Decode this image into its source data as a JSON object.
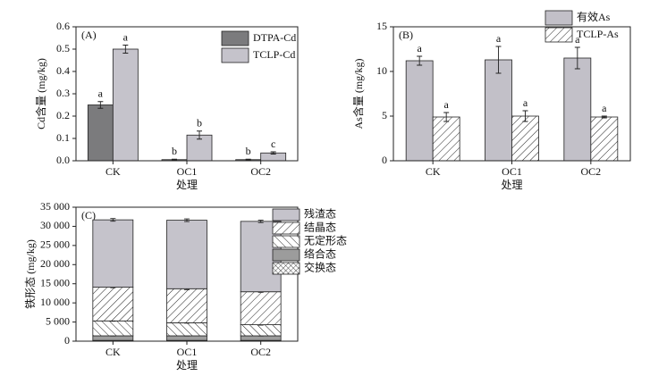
{
  "chart_data": [
    {
      "type": "bar",
      "panel": "(A)",
      "xlabel": "处理",
      "ylabel": "Cd含量 (mg/kg)",
      "categories": [
        "CK",
        "OC1",
        "OC2"
      ],
      "ylim": [
        0,
        0.6
      ],
      "yticks": [
        {
          "value": 0,
          "label": "0.0"
        },
        0.1,
        0.2,
        0.3,
        0.4,
        0.5,
        0.6
      ],
      "legend": "upper right",
      "series": [
        {
          "name": "DTPA-Cd",
          "color": "#7b7b7d",
          "pattern": "solid",
          "values": [
            0.25,
            0.005,
            0.005
          ],
          "errors": [
            0.015,
            0.002,
            0.002
          ],
          "letters": [
            "a",
            "b",
            "b"
          ]
        },
        {
          "name": "TCLP-Cd",
          "color": "#c5c3cb",
          "pattern": "solid",
          "values": [
            0.5,
            0.115,
            0.035
          ],
          "errors": [
            0.018,
            0.018,
            0.005
          ],
          "letters": [
            "a",
            "b",
            "c"
          ]
        }
      ]
    },
    {
      "type": "bar",
      "panel": "(B)",
      "xlabel": "处理",
      "ylabel": "As含量 (mg/kg)",
      "categories": [
        "CK",
        "OC1",
        "OC2"
      ],
      "ylim": [
        0,
        15
      ],
      "yticks": [
        0,
        5,
        10,
        15
      ],
      "legend": "upper right",
      "series": [
        {
          "name": "有效As",
          "color": "#c2c0c8",
          "pattern": "solid",
          "values": [
            11.2,
            11.3,
            11.5
          ],
          "errors": [
            0.5,
            1.5,
            1.2
          ],
          "letters": [
            "a",
            "a",
            "a"
          ]
        },
        {
          "name": "TCLP-As",
          "color": "#ffffff",
          "pattern": "hatch-fwd",
          "values": [
            4.9,
            5.0,
            4.9
          ],
          "errors": [
            0.5,
            0.6,
            0.1
          ],
          "letters": [
            "a",
            "a",
            "a"
          ]
        }
      ]
    },
    {
      "type": "stacked_bar",
      "panel": "(C)",
      "xlabel": "处理",
      "ylabel": "铁形态 (mg/kg)",
      "categories": [
        "CK",
        "OC1",
        "OC2"
      ],
      "ylim": [
        0,
        35000
      ],
      "yticks": [
        0,
        {
          "value": 5000,
          "label": "5 000"
        },
        {
          "value": 10000,
          "label": "10 000"
        },
        {
          "value": 15000,
          "label": "15 000"
        },
        {
          "value": 20000,
          "label": "20 000"
        },
        {
          "value": 25000,
          "label": "25 000"
        },
        {
          "value": 30000,
          "label": "30 000"
        },
        {
          "value": 35000,
          "label": "35 000"
        }
      ],
      "legend": "right",
      "series": [
        {
          "name": "残渣态",
          "color": "#c5c3cb",
          "pattern": "solid",
          "values": [
            17600,
            17900,
            18400
          ],
          "errors": [
            350,
            350,
            300
          ]
        },
        {
          "name": "结晶态",
          "color": "#ffffff",
          "pattern": "hatch-fwd",
          "values": [
            8800,
            8900,
            8600
          ],
          "errors": [
            150,
            250,
            150
          ]
        },
        {
          "name": "无定形态",
          "color": "#ffffff",
          "pattern": "hatch-back",
          "values": [
            3900,
            3400,
            2900
          ],
          "errors": [
            100,
            100,
            100
          ]
        },
        {
          "name": "络合态",
          "color": "#9c9c9c",
          "pattern": "solid",
          "values": [
            1200,
            1200,
            1200
          ],
          "errors": [
            50,
            50,
            50
          ]
        },
        {
          "name": "交换态",
          "color": "#ffffff",
          "pattern": "cross",
          "values": [
            200,
            200,
            200
          ],
          "errors": [
            20,
            20,
            20
          ]
        }
      ]
    }
  ]
}
